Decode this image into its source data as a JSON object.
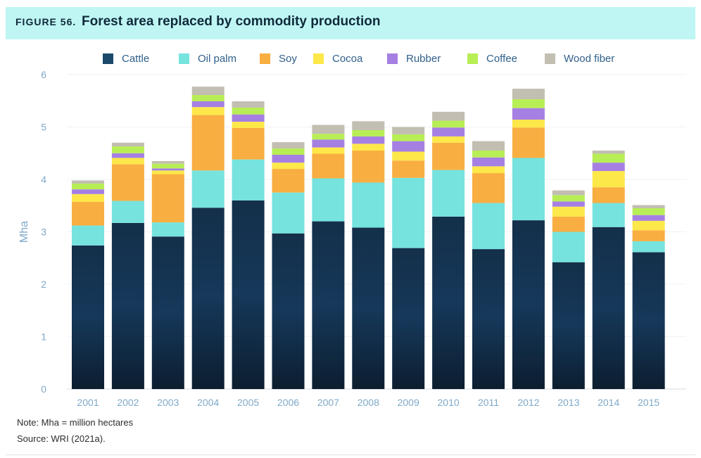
{
  "figure_label": "FIGURE 56.",
  "title": "Forest area replaced by commodity production",
  "note": "Note: Mha = million hectares",
  "source": "Source: WRI (2021a).",
  "colors": {
    "Cattle": "#1b4a6b",
    "Oil palm": "#76e3de",
    "Soy": "#f9ae41",
    "Cocoa": "#fde84a",
    "Rubber": "#a67fe3",
    "Coffee": "#b8ee55",
    "Wood fiber": "#c2beb1"
  },
  "chart_data": {
    "type": "bar",
    "stacked": true,
    "title": "Forest area replaced by commodity production",
    "xlabel": "",
    "ylabel": "Mha",
    "ylim": [
      0,
      6
    ],
    "yticks": [
      0,
      1,
      2,
      3,
      4,
      5,
      6
    ],
    "grid": true,
    "legend_position": "top",
    "categories": [
      "2001",
      "2002",
      "2003",
      "2004",
      "2005",
      "2006",
      "2007",
      "2008",
      "2009",
      "2010",
      "2011",
      "2012",
      "2013",
      "2014",
      "2015"
    ],
    "series": [
      {
        "name": "Cattle",
        "values": [
          2.74,
          3.17,
          2.91,
          3.46,
          3.6,
          2.97,
          3.2,
          3.08,
          2.69,
          3.29,
          2.67,
          3.22,
          2.42,
          3.09,
          2.61
        ]
      },
      {
        "name": "Oil palm",
        "values": [
          0.38,
          0.42,
          0.27,
          0.71,
          0.78,
          0.78,
          0.82,
          0.86,
          1.34,
          0.89,
          0.88,
          1.19,
          0.58,
          0.46,
          0.21
        ]
      },
      {
        "name": "Soy",
        "values": [
          0.45,
          0.7,
          0.92,
          1.06,
          0.6,
          0.45,
          0.47,
          0.61,
          0.33,
          0.52,
          0.57,
          0.58,
          0.29,
          0.3,
          0.21
        ]
      },
      {
        "name": "Cocoa",
        "values": [
          0.15,
          0.12,
          0.07,
          0.15,
          0.12,
          0.12,
          0.12,
          0.13,
          0.17,
          0.12,
          0.13,
          0.15,
          0.19,
          0.31,
          0.18
        ]
      },
      {
        "name": "Rubber",
        "values": [
          0.09,
          0.09,
          0.04,
          0.11,
          0.14,
          0.15,
          0.15,
          0.14,
          0.2,
          0.17,
          0.17,
          0.22,
          0.1,
          0.16,
          0.11
        ]
      },
      {
        "name": "Coffee",
        "values": [
          0.11,
          0.13,
          0.09,
          0.12,
          0.13,
          0.12,
          0.11,
          0.12,
          0.13,
          0.13,
          0.13,
          0.17,
          0.12,
          0.17,
          0.13
        ]
      },
      {
        "name": "Wood fiber",
        "values": [
          0.06,
          0.07,
          0.05,
          0.16,
          0.12,
          0.12,
          0.17,
          0.17,
          0.14,
          0.17,
          0.18,
          0.2,
          0.09,
          0.06,
          0.06
        ]
      }
    ]
  }
}
